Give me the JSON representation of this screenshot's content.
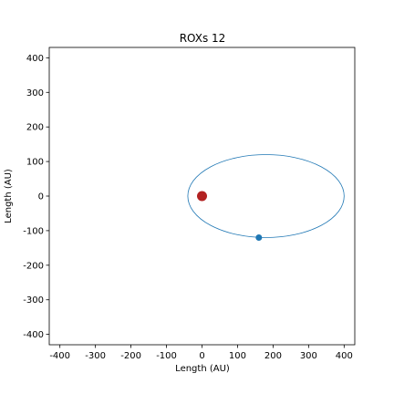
{
  "chart_data": {
    "type": "scatter",
    "title": "ROXs 12",
    "xlabel": "Length (AU)",
    "ylabel": "Length (AU)",
    "xlim": [
      -430,
      430
    ],
    "ylim": [
      -430,
      430
    ],
    "xticks": [
      -400,
      -300,
      -200,
      -100,
      0,
      100,
      200,
      300,
      400
    ],
    "yticks": [
      -400,
      -300,
      -200,
      -100,
      0,
      100,
      200,
      300,
      400
    ],
    "grid": false,
    "orbit": {
      "center": [
        180,
        0
      ],
      "semi_major_axis": 220,
      "semi_minor_axis": 120,
      "color": "#1f77b4"
    },
    "points": [
      {
        "x": 0,
        "y": 0,
        "color": "#b22222",
        "role": "star"
      },
      {
        "x": 160,
        "y": -120,
        "color": "#1f77b4",
        "role": "companion"
      }
    ]
  }
}
